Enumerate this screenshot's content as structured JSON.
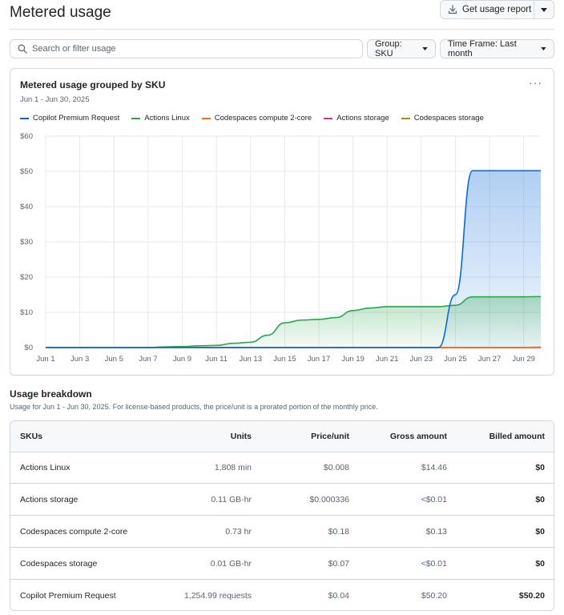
{
  "header": {
    "title": "Metered usage",
    "report_button": "Get usage report"
  },
  "toolbar": {
    "search_placeholder": "Search or filter usage",
    "group_label": "Group: SKU",
    "timeframe_label": "Time Frame: Last month"
  },
  "chart_card": {
    "title": "Metered usage grouped by SKU",
    "subtitle": "Jun 1 - Jun 30, 2025"
  },
  "colors": {
    "copilot": "#0969da",
    "linux": "#2da44e",
    "cs_compute": "#fb6a21",
    "actions_storage": "#cf3692",
    "cs_storage": "#bf8700"
  },
  "chart_data": {
    "type": "area",
    "x": [
      "Jun 1",
      "Jun 2",
      "Jun 3",
      "Jun 4",
      "Jun 5",
      "Jun 6",
      "Jun 7",
      "Jun 8",
      "Jun 9",
      "Jun 10",
      "Jun 11",
      "Jun 12",
      "Jun 13",
      "Jun 14",
      "Jun 15",
      "Jun 16",
      "Jun 17",
      "Jun 18",
      "Jun 19",
      "Jun 20",
      "Jun 21",
      "Jun 22",
      "Jun 23",
      "Jun 24",
      "Jun 25",
      "Jun 26",
      "Jun 27",
      "Jun 28",
      "Jun 29",
      "Jun 30"
    ],
    "x_tick_labels": [
      "Jun 1",
      "Jun 3",
      "Jun 5",
      "Jun 7",
      "Jun 9",
      "Jun 11",
      "Jun 13",
      "Jun 15",
      "Jun 17",
      "Jun 19",
      "Jun 21",
      "Jun 23",
      "Jun 25",
      "Jun 27",
      "Jun 29"
    ],
    "y_ticks": [
      "$0",
      "$10",
      "$20",
      "$30",
      "$40",
      "$50",
      "$60"
    ],
    "ylim": [
      0,
      60
    ],
    "grid": true,
    "legend_position": "top-left",
    "series": [
      {
        "name": "Copilot Premium Request",
        "color": "#0969da",
        "fill": true,
        "values": [
          0,
          0,
          0,
          0,
          0,
          0,
          0,
          0,
          0,
          0,
          0,
          0,
          0,
          0,
          0,
          0,
          0,
          0,
          0,
          0,
          0,
          0,
          0,
          0,
          15,
          50.2,
          50.2,
          50.2,
          50.2,
          50.2
        ]
      },
      {
        "name": "Actions Linux",
        "color": "#2da44e",
        "fill": true,
        "values": [
          0,
          0,
          0,
          0,
          0,
          0,
          0,
          0.2,
          0.3,
          0.5,
          0.6,
          1.2,
          1.5,
          3.5,
          7,
          7.8,
          8,
          8.5,
          10.5,
          11.2,
          11.6,
          11.6,
          11.6,
          11.6,
          12,
          14.4,
          14.4,
          14.4,
          14.4,
          14.46
        ]
      },
      {
        "name": "Codespaces compute 2-core",
        "color": "#fb6a21",
        "fill": false,
        "values": [
          0,
          0,
          0,
          0,
          0,
          0,
          0,
          0,
          0,
          0,
          0,
          0,
          0,
          0,
          0,
          0,
          0,
          0,
          0,
          0,
          0,
          0,
          0,
          0,
          0,
          0,
          0,
          0,
          0,
          0.13
        ]
      },
      {
        "name": "Actions storage",
        "color": "#cf3692",
        "fill": false,
        "values": [
          0,
          0,
          0,
          0,
          0,
          0,
          0,
          0,
          0,
          0,
          0,
          0,
          0,
          0,
          0,
          0,
          0,
          0,
          0,
          0,
          0,
          0,
          0,
          0,
          0,
          0,
          0,
          0,
          0,
          0
        ]
      },
      {
        "name": "Codespaces storage",
        "color": "#bf8700",
        "fill": false,
        "values": [
          0,
          0,
          0,
          0,
          0,
          0,
          0,
          0,
          0,
          0,
          0,
          0,
          0,
          0,
          0,
          0,
          0,
          0,
          0,
          0,
          0,
          0,
          0,
          0,
          0,
          0,
          0,
          0,
          0,
          0
        ]
      }
    ]
  },
  "breakdown": {
    "title": "Usage breakdown",
    "subtitle": "Usage for Jun 1 - Jun 30, 2025. For license-based products, the price/unit is a prorated portion of the monthly price.",
    "columns": [
      "SKUs",
      "Units",
      "Price/unit",
      "Gross amount",
      "Billed amount"
    ],
    "rows": [
      [
        "Actions Linux",
        "1,808 min",
        "$0.008",
        "$14.46",
        "$0"
      ],
      [
        "Actions storage",
        "0.11 GB-hr",
        "$0.000336",
        "<$0.01",
        "$0"
      ],
      [
        "Codespaces compute 2-core",
        "0.73 hr",
        "$0.18",
        "$0.13",
        "$0"
      ],
      [
        "Codespaces storage",
        "0.01 GB-hr",
        "$0.07",
        "<$0.01",
        "$0"
      ],
      [
        "Copilot Premium Request",
        "1,254.99 requests",
        "$0.04",
        "$50.20",
        "$50.20"
      ]
    ]
  }
}
